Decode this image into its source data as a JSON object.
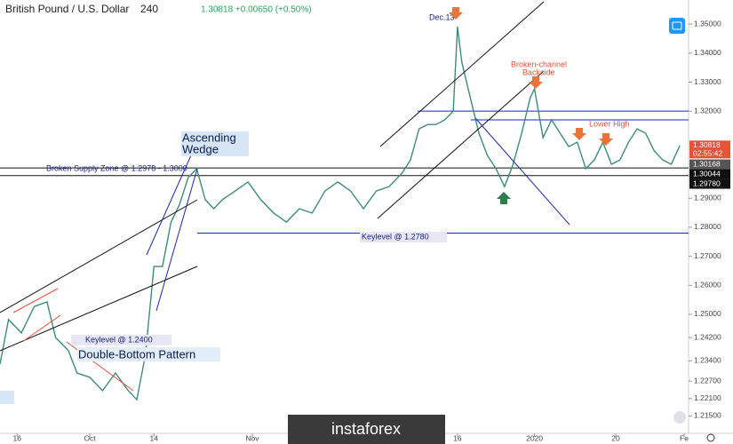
{
  "chart_data": {
    "type": "line",
    "title": "British Pound / U.S. Dollar",
    "interval": "240",
    "quote": "1.30818 +0.00650 (+0.50%)",
    "xlim": [
      0,
      160
    ],
    "xticks": [
      {
        "value": 4,
        "label": "16"
      },
      {
        "value": 21,
        "label": "Oct"
      },
      {
        "value": 36,
        "label": "14"
      },
      {
        "value": 59,
        "label": "Nov"
      },
      {
        "value": 107,
        "label": "16"
      },
      {
        "value": 125,
        "label": "2020"
      },
      {
        "value": 144,
        "label": "20"
      },
      {
        "value": 160,
        "label": "Fe"
      }
    ],
    "ylim": [
      1.209,
      1.3583
    ],
    "yticks": [
      {
        "value": 1.35,
        "label": "1.35000"
      },
      {
        "value": 1.34,
        "label": "1.34000"
      },
      {
        "value": 1.33,
        "label": "1.33000"
      },
      {
        "value": 1.32,
        "label": "1.32000"
      },
      {
        "value": 1.29,
        "label": "1.29000"
      },
      {
        "value": 1.28,
        "label": "1.28000"
      },
      {
        "value": 1.27,
        "label": "1.27000"
      },
      {
        "value": 1.26,
        "label": "1.26000"
      },
      {
        "value": 1.25,
        "label": "1.25000"
      },
      {
        "value": 1.242,
        "label": "1.24200"
      },
      {
        "value": 1.234,
        "label": "1.23400"
      },
      {
        "value": 1.227,
        "label": "1.22700"
      },
      {
        "value": 1.221,
        "label": "1.22100"
      },
      {
        "value": 1.215,
        "label": "1.21500"
      }
    ],
    "series": [
      {
        "name": "GBPUSD",
        "color": "#3d8c78",
        "x": [
          0,
          2,
          5,
          8,
          11,
          13,
          16,
          18,
          21,
          24,
          27,
          30,
          32,
          34,
          36,
          38,
          40,
          42,
          44,
          46,
          48,
          50,
          52,
          55,
          58,
          61,
          64,
          67,
          70,
          73,
          76,
          79,
          82,
          85,
          88,
          91,
          94,
          96,
          98,
          100,
          102,
          104,
          106,
          107,
          108,
          110,
          112,
          114,
          116,
          118,
          120,
          122,
          124,
          125,
          127,
          129,
          131,
          133,
          135,
          137,
          139,
          141,
          143,
          145,
          147,
          149,
          151,
          153,
          155,
          157,
          159
        ],
        "values": [
          1.2329,
          1.2482,
          1.2436,
          1.2527,
          1.2543,
          1.242,
          1.2375,
          1.2298,
          1.2283,
          1.2237,
          1.2298,
          1.2237,
          1.2206,
          1.2359,
          1.2665,
          1.2665,
          1.2818,
          1.2879,
          1.2971,
          1.3002,
          1.2895,
          1.2864,
          1.2895,
          1.2925,
          1.2956,
          1.2895,
          1.2849,
          1.2818,
          1.2864,
          1.2849,
          1.2925,
          1.2956,
          1.2925,
          1.2864,
          1.2925,
          1.294,
          1.2986,
          1.3032,
          1.3139,
          1.3154,
          1.3154,
          1.317,
          1.32,
          1.3491,
          1.3369,
          1.3246,
          1.3124,
          1.3047,
          1.3002,
          1.294,
          1.3017,
          1.3124,
          1.3246,
          1.3277,
          1.3109,
          1.317,
          1.3124,
          1.3078,
          1.3093,
          1.3002,
          1.3032,
          1.3093,
          1.3017,
          1.3032,
          1.3093,
          1.3139,
          1.3124,
          1.3063,
          1.3032,
          1.3017,
          1.3082
        ]
      }
    ],
    "levels": [
      {
        "value": 1.32,
        "color": "#1a27b0"
      },
      {
        "value": 1.317,
        "color": "#1a27b0"
      },
      {
        "value": 1.278,
        "color": "#1a27b0"
      },
      {
        "value": 1.30044,
        "color": "#111111"
      },
      {
        "value": 1.2978,
        "color": "#111111"
      }
    ],
    "price_labels": [
      {
        "value": 1.30818,
        "label": "1.30818",
        "color": "#e8513a"
      },
      {
        "value": 1.30168,
        "label": "1.30168",
        "color": "#555555"
      },
      {
        "value": 1.30044,
        "label": "1.30044",
        "color": "#111111"
      },
      {
        "value": 1.2978,
        "label": "1.29780",
        "color": "#111111"
      }
    ],
    "countdown": "02:55:42",
    "annotations": {
      "dec": "Dec.13",
      "broken_channel": [
        "Broken-channel",
        "Backside"
      ],
      "lower_high": "Lower High",
      "wedge": [
        "Ascending",
        "Wedge"
      ],
      "supply": "Broken Supply Zone @ 1.2978 - 1.3000",
      "key1278": "Keylevel @ 1.2780",
      "key124": "Keylevel @ 1.2400",
      "double_bottom": "Double-Bottom Pattern"
    },
    "watermark": "instaforex"
  }
}
